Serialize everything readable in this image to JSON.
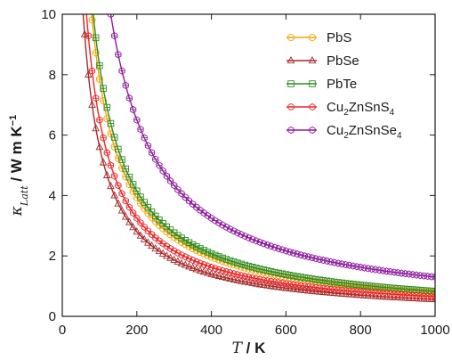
{
  "chart_data": {
    "type": "line",
    "title": "",
    "xlabel": {
      "italic": "T",
      "rest": " / K"
    },
    "ylabel": {
      "kappa": "κ",
      "sub": "Latt",
      "units": " / W m K",
      "sup": "−1"
    },
    "xlim": [
      0,
      1000
    ],
    "ylim": [
      0,
      10
    ],
    "xticks": [
      0,
      200,
      400,
      600,
      800,
      1000
    ],
    "yticks": [
      0,
      2,
      4,
      6,
      8,
      10
    ],
    "grid": false,
    "legend_position": "top-right",
    "model": "kappa = A / T",
    "series": [
      {
        "name": "PbS",
        "label": {
          "main": "PbS"
        },
        "color": "#f0a500",
        "marker": "circle",
        "A": 785,
        "x": [
          80,
          200,
          400,
          600,
          800,
          1000
        ],
        "y": [
          9.81,
          3.93,
          1.96,
          1.31,
          0.98,
          0.79
        ]
      },
      {
        "name": "PbSe",
        "label": {
          "main": "PbSe"
        },
        "color": "#a52a2a",
        "marker": "triangle",
        "A": 560,
        "x": [
          60,
          200,
          400,
          600,
          800,
          1000
        ],
        "y": [
          9.33,
          2.8,
          1.4,
          0.93,
          0.7,
          0.56
        ]
      },
      {
        "name": "PbTe",
        "label": {
          "main": "PbTe"
        },
        "color": "#2e8b22",
        "marker": "square",
        "A": 830,
        "x": [
          85,
          200,
          400,
          600,
          800,
          1000
        ],
        "y": [
          9.76,
          4.15,
          2.08,
          1.38,
          1.04,
          0.83
        ]
      },
      {
        "name": "Cu2ZnSnS4",
        "label": {
          "main": "Cu",
          "sub1": "2",
          "mid": "ZnSnS",
          "sub2": "4"
        },
        "color": "#e8282a",
        "marker": "hexagon",
        "A": 650,
        "x": [
          66,
          200,
          400,
          600,
          800,
          1000
        ],
        "y": [
          9.85,
          3.25,
          1.63,
          1.08,
          0.81,
          0.65
        ]
      },
      {
        "name": "Cu2ZnSnSe4",
        "label": {
          "main": "Cu",
          "sub1": "2",
          "mid": "ZnSnSe",
          "sub2": "4"
        },
        "color": "#8b1a9b",
        "marker": "hexagon",
        "A": 1300,
        "x": [
          140,
          200,
          400,
          600,
          800,
          1000
        ],
        "y": [
          9.29,
          6.5,
          3.25,
          2.17,
          1.63,
          1.3
        ]
      }
    ]
  }
}
